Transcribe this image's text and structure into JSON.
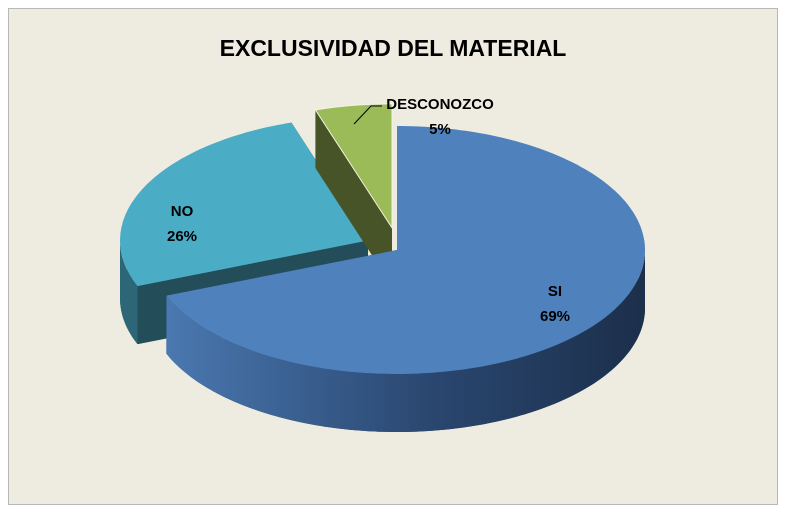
{
  "chart_data": {
    "type": "pie3d",
    "title": "EXCLUSIVIDAD DEL MATERIAL",
    "categories": [
      "SI",
      "NO",
      "DESCONOZCO"
    ],
    "values": [
      69,
      26,
      5
    ],
    "value_labels": [
      "69%",
      "26%",
      "5%"
    ],
    "colors": [
      "#4f81bd",
      "#4bacc6",
      "#9bbb59"
    ]
  }
}
